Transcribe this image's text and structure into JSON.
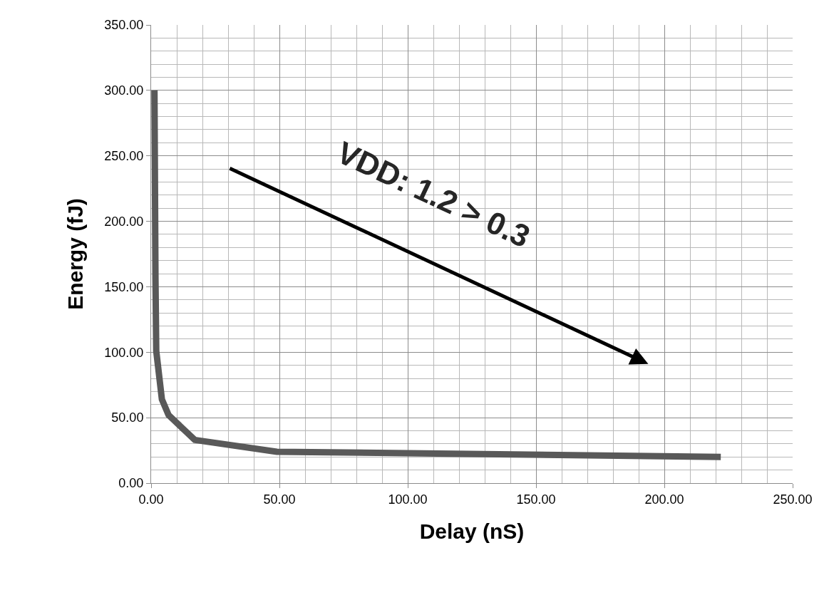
{
  "chart_data": {
    "type": "line",
    "xlabel": "Delay (nS)",
    "ylabel": "Energy (fJ)",
    "x": [
      1.3,
      1.7,
      2,
      4.2,
      6.8,
      17,
      49,
      222
    ],
    "series": [
      {
        "color": "#595959",
        "values": [
          300,
          156,
          101,
          64,
          52,
          33,
          24,
          20
        ]
      }
    ],
    "xlim": [
      0,
      250
    ],
    "xticks": [
      {
        "value": 0,
        "label": "0.00"
      },
      {
        "value": 50,
        "label": "50.00"
      },
      {
        "value": 100,
        "label": "100.00"
      },
      {
        "value": 150,
        "label": "150.00"
      },
      {
        "value": 200,
        "label": "200.00"
      },
      {
        "value": 250,
        "label": "250.00"
      }
    ],
    "ylim": [
      0,
      350
    ],
    "yticks": [
      {
        "value": 0,
        "label": "0.00"
      },
      {
        "value": 50,
        "label": "50.00"
      },
      {
        "value": 100,
        "label": "100.00"
      },
      {
        "value": 150,
        "label": "150.00"
      },
      {
        "value": 200,
        "label": "200.00"
      },
      {
        "value": 250,
        "label": "250.00"
      },
      {
        "value": 300,
        "label": "300.00"
      },
      {
        "value": 350,
        "label": "350.00"
      }
    ],
    "grid": true,
    "marker": "none",
    "line_style": "solid",
    "annotations": [
      "VDD: 1.2 > 0.3"
    ]
  }
}
